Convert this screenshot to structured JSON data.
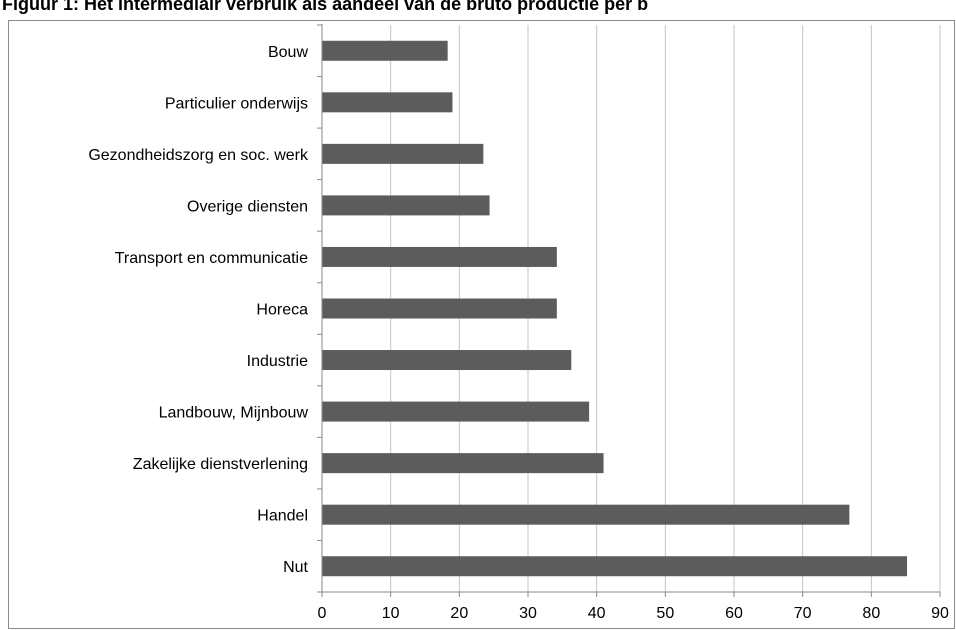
{
  "title": "Figuur 1: Het intermediair verbruik als aandeel van de bruto productie per b",
  "chart_data": {
    "type": "bar",
    "orientation": "horizontal",
    "title": "Figuur 1: Het intermediair verbruik als aandeel van de bruto productie per b",
    "categories": [
      "Bouw",
      "Particulier onderwijs",
      "Gezondheidszorg en soc. werk",
      "Overige diensten",
      "Transport en communicatie",
      "Horeca",
      "Industrie",
      "Landbouw, Mijnbouw",
      "Zakelijke dienstverlening",
      "Handel",
      "Nut"
    ],
    "values": [
      18.3,
      19.0,
      23.5,
      24.4,
      34.2,
      34.2,
      36.3,
      38.9,
      41.0,
      76.8,
      85.2
    ],
    "xlim": [
      0,
      90
    ],
    "x_ticks": [
      0,
      10,
      20,
      30,
      40,
      50,
      60,
      70,
      80,
      90
    ],
    "grid": "vertical",
    "bar_color": "#5c5c5c",
    "grid_color": "#c4c4c4",
    "legend": "none"
  }
}
